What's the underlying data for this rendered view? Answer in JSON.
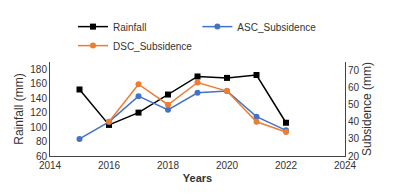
{
  "chart_data": {
    "type": "line",
    "x": [
      2015,
      2016,
      2017,
      2018,
      2019,
      2020,
      2021,
      2022
    ],
    "series": [
      {
        "name": "Rainfall",
        "color": "#000000",
        "marker": "square",
        "values": [
          152,
          103,
          120,
          145,
          170,
          168,
          172,
          106
        ]
      },
      {
        "name": "ASC_Subsidence",
        "color": "#4472C4",
        "marker": "circle",
        "axis": "y2",
        "values": [
          30,
          40,
          55,
          47,
          57,
          58,
          43,
          35
        ]
      },
      {
        "name": "DSC_Subsidence",
        "color": "#ED7D31",
        "marker": "circle",
        "axis": "y2",
        "values": [
          null,
          40,
          62,
          50,
          63,
          58,
          40,
          34
        ]
      }
    ],
    "xlabel": "Years",
    "ylabel": "Rainfall (mm)",
    "y2label": "Subsidence (mm)",
    "xlim": [
      2014,
      2024
    ],
    "xticks": [
      2014,
      2016,
      2018,
      2020,
      2022,
      2024
    ],
    "ylim": [
      60,
      190
    ],
    "yticks": [
      60,
      80,
      100,
      120,
      140,
      160,
      180
    ],
    "y2lim": [
      20,
      75
    ],
    "y2ticks": [
      20,
      30,
      40,
      50,
      60,
      70
    ],
    "grid": false,
    "legend": "top"
  }
}
